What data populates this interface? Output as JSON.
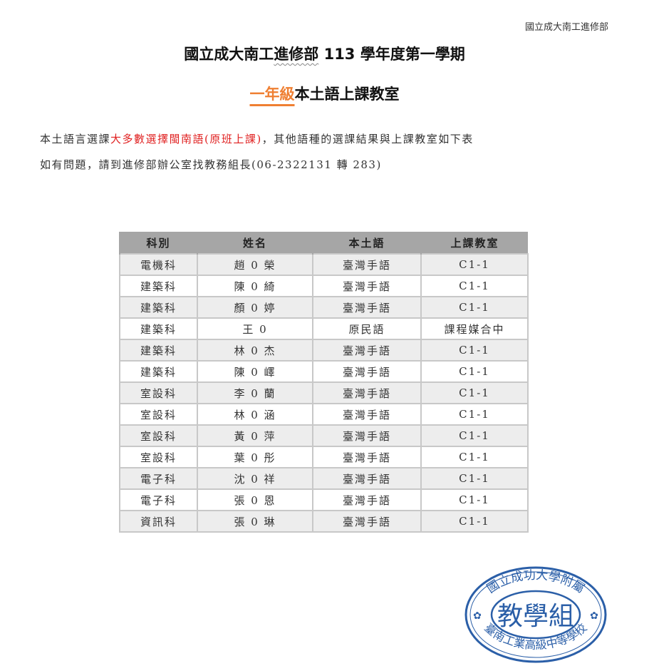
{
  "header_note": "國立成大南工進修部",
  "title": {
    "part1": "國立成大南工",
    "part2": "進修部",
    "part3": " 113 學年度第一學期"
  },
  "subtitle": {
    "highlight": "一年級",
    "rest": "本土語上課教室"
  },
  "paragraph1": {
    "before": "本土語言選課",
    "red": "大多數選擇閩南語(原班上課)",
    "after": "，其他語種的選課結果與上課教室如下表"
  },
  "paragraph2": "如有問題，請到進修部辦公室找教務組長(06-2322131 轉 283)",
  "table": {
    "headers": [
      "科別",
      "姓名",
      "本土語",
      "上課教室"
    ],
    "rows": [
      [
        "電機科",
        "趙 0 榮",
        "臺灣手語",
        "C1-1"
      ],
      [
        "建築科",
        "陳 0 綺",
        "臺灣手語",
        "C1-1"
      ],
      [
        "建築科",
        "顏 0 婷",
        "臺灣手語",
        "C1-1"
      ],
      [
        "建築科",
        "王 0",
        "原民語",
        "課程媒合中"
      ],
      [
        "建築科",
        "林 0 杰",
        "臺灣手語",
        "C1-1"
      ],
      [
        "建築科",
        "陳 0 嶧",
        "臺灣手語",
        "C1-1"
      ],
      [
        "室設科",
        "李 0 蘭",
        "臺灣手語",
        "C1-1"
      ],
      [
        "室設科",
        "林 0 涵",
        "臺灣手語",
        "C1-1"
      ],
      [
        "室設科",
        "黃 0 萍",
        "臺灣手語",
        "C1-1"
      ],
      [
        "室設科",
        "葉 0 彤",
        "臺灣手語",
        "C1-1"
      ],
      [
        "電子科",
        "沈 0 祥",
        "臺灣手語",
        "C1-1"
      ],
      [
        "電子科",
        "張 0 恩",
        "臺灣手語",
        "C1-1"
      ],
      [
        "資訊科",
        "張 0 琳",
        "臺灣手語",
        "C1-1"
      ]
    ]
  },
  "stamp": {
    "top_arc": "國立成功大學附屬",
    "bottom_arc": "臺南工業高級中等學校",
    "center": "教學組",
    "color": "#2b5fa8"
  },
  "colors": {
    "accent_orange": "#ef7f32",
    "red_text": "#e02020",
    "header_bg": "#a6a6a6"
  }
}
